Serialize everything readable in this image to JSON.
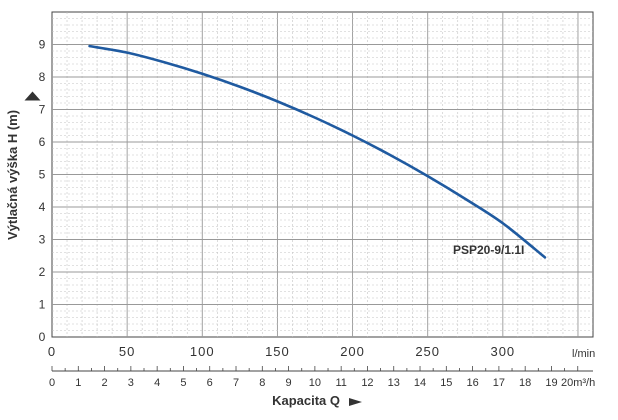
{
  "chart_data": {
    "type": "line",
    "title": "",
    "ylabel": "Výtlačná výška H (m)",
    "xlabel": "Kapacita Q",
    "x_unit": "l/min",
    "x2_unit": "20m³/h",
    "xlim": [
      0,
      360
    ],
    "ylim": [
      0,
      10
    ],
    "x_ticks": [
      "0",
      "50",
      "100",
      "150",
      "200",
      "250",
      "300"
    ],
    "y_ticks": [
      "0",
      "1",
      "2",
      "3",
      "4",
      "5",
      "6",
      "7",
      "8",
      "9"
    ],
    "x2_ticks": [
      "0",
      "1",
      "2",
      "3",
      "4",
      "5",
      "6",
      "7",
      "8",
      "9",
      "10",
      "11",
      "12",
      "13",
      "14",
      "15",
      "16",
      "17",
      "18",
      "19"
    ],
    "grid": true,
    "series": [
      {
        "name": "PSP20-9/1.1I",
        "color": "#1f5aa0",
        "x": [
          25,
          50,
          75,
          100,
          125,
          150,
          175,
          200,
          225,
          250,
          275,
          300,
          328
        ],
        "y": [
          8.95,
          8.75,
          8.45,
          8.1,
          7.7,
          7.25,
          6.75,
          6.2,
          5.6,
          4.95,
          4.25,
          3.5,
          2.45
        ]
      }
    ]
  }
}
